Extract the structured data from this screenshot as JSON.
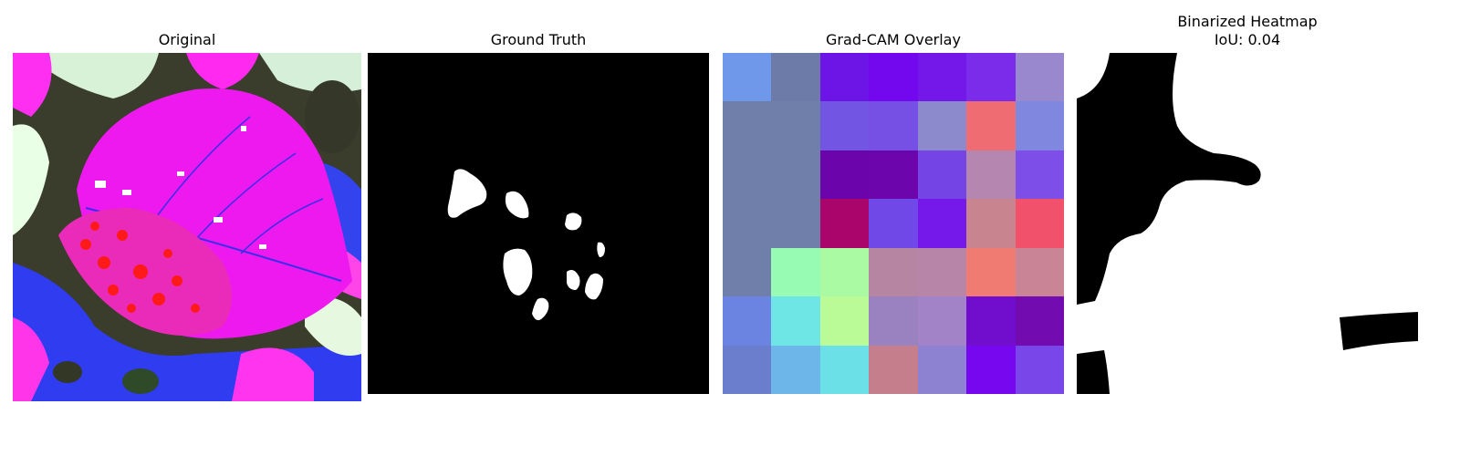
{
  "panels": {
    "original": {
      "title": "Original"
    },
    "ground_truth": {
      "title": "Ground Truth"
    },
    "gradcam": {
      "title": "Grad-CAM Overlay",
      "cell_colors": [
        [
          "#6f97ea",
          "#6d7ba8",
          "#6c15e6",
          "#7308ef",
          "#7418ea",
          "#7a2cea",
          "#9a88cf"
        ],
        [
          "#6f7faa",
          "#6f7faa",
          "#7256e3",
          "#7650e5",
          "#8c89cc",
          "#ef6c73",
          "#7f87df"
        ],
        [
          "#6f7faa",
          "#6f7faa",
          "#6b05ab",
          "#6c05ab",
          "#7444e5",
          "#b486b0",
          "#7d4ee8"
        ],
        [
          "#6f7faa",
          "#6f7faa",
          "#a9056a",
          "#7048e8",
          "#7419ea",
          "#c9858f",
          "#f2516c"
        ],
        [
          "#6f7faa",
          "#97fbb4",
          "#aafaa3",
          "#b585a1",
          "#b785a8",
          "#ef7b73",
          "#c98596"
        ],
        [
          "#6b84e2",
          "#6fe6e6",
          "#bafb97",
          "#9a82c1",
          "#a283c7",
          "#710dcc",
          "#730cb0"
        ],
        [
          "#6b7ece",
          "#6db6ea",
          "#6be0e6",
          "#c57e8c",
          "#8d82d2",
          "#7707ef",
          "#7946ea"
        ]
      ]
    },
    "binarized": {
      "title": "Binarized Heatmap",
      "iou_label": "IoU: 0.04",
      "iou_value": 0.04
    }
  }
}
